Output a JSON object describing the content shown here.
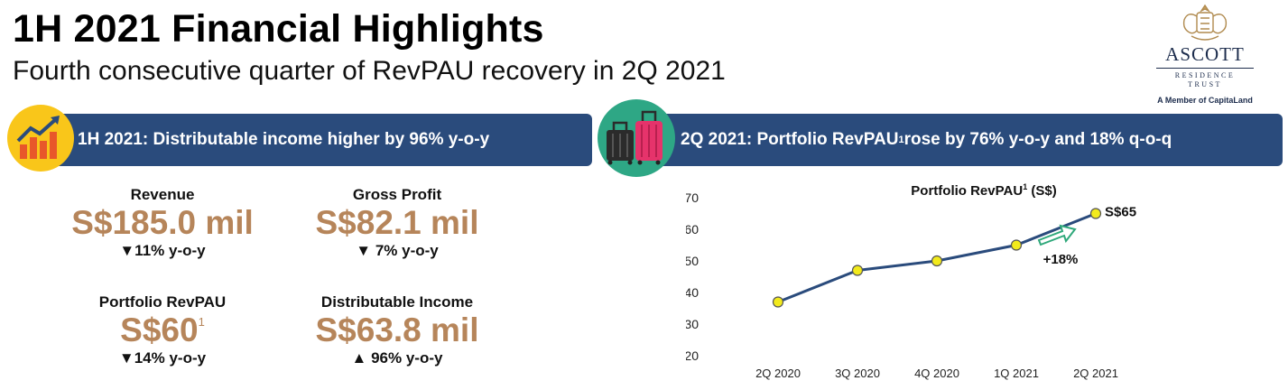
{
  "header": {
    "title": "1H 2021 Financial Highlights",
    "subtitle": "Fourth consecutive quarter of RevPAU recovery in 2Q 2021"
  },
  "logo": {
    "name": "ASCOTT",
    "line1": "RESIDENCE",
    "line2": "TRUST",
    "member": "A Member of CapitaLand"
  },
  "left_banner": {
    "text": "1H 2021: Distributable income higher by 96% y-o-y",
    "icon": "growth-chart-icon"
  },
  "right_banner": {
    "text_pre": "2Q 2021: Portfolio RevPAU",
    "sup": "1",
    "text_post": " rose by 76% y-o-y and 18% q-o-q",
    "icon": "luggage-icon"
  },
  "metrics": {
    "revenue": {
      "label": "Revenue",
      "value": "S$185.0 mil",
      "change": "▼11% y-o-y"
    },
    "gross_profit": {
      "label": "Gross Profit",
      "value": "S$82.1 mil",
      "change": "▼ 7% y-o-y"
    },
    "revpau": {
      "label": "Portfolio RevPAU",
      "value": "S$60",
      "sup": "1",
      "change": "▼14% y-o-y"
    },
    "distributable_income": {
      "label": "Distributable Income",
      "value": "S$63.8 mil",
      "change": "▲ 96% y-o-y"
    }
  },
  "chart_data": {
    "type": "line",
    "title_pre": "Portfolio RevPAU",
    "title_sup": "1",
    "title_post": " (S$)",
    "categories": [
      "2Q 2020",
      "3Q 2020",
      "4Q 2020",
      "1Q 2021",
      "2Q 2021"
    ],
    "values": [
      37,
      47,
      50,
      55,
      65
    ],
    "ylim": [
      20,
      70
    ],
    "yticks": [
      20,
      30,
      40,
      50,
      60,
      70
    ],
    "end_label": "S$65",
    "growth_label": "+18%",
    "line_color": "#2a4b7c",
    "marker_color": "#f2ea1c",
    "arrow_color": "#2ea87a"
  }
}
